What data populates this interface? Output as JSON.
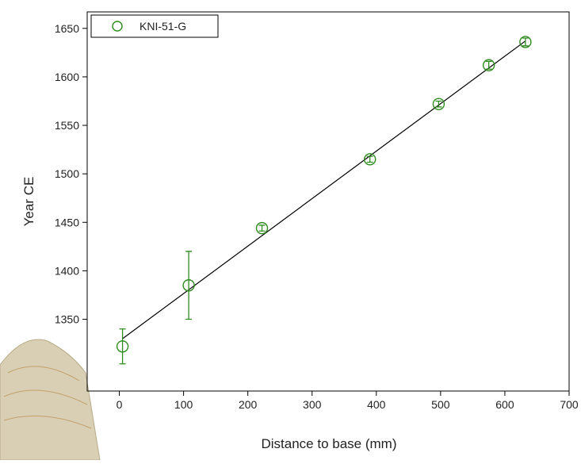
{
  "chart_data": {
    "type": "scatter",
    "xlabel": "Distance to base (mm)",
    "ylabel": "Year CE",
    "series": [
      {
        "name": "KNI-51-G",
        "color": "#2e8b1e",
        "x": [
          5,
          108,
          222,
          390,
          497,
          575,
          632
        ],
        "values": [
          1322,
          1385,
          1444,
          1515,
          1572,
          1612,
          1636
        ],
        "errors": [
          18,
          35,
          3,
          3,
          3,
          4,
          4
        ]
      }
    ],
    "fit": {
      "x": [
        5,
        632
      ],
      "y": [
        1330,
        1637
      ],
      "color": "#000000"
    },
    "xlim": [
      -50,
      700
    ],
    "xticks": [
      0,
      100,
      200,
      300,
      400,
      500,
      600,
      700
    ],
    "ylim": [
      1276,
      1667
    ],
    "yticks": [
      1350,
      1400,
      1450,
      1500,
      1550,
      1600,
      1650
    ],
    "legend": "top-left"
  }
}
